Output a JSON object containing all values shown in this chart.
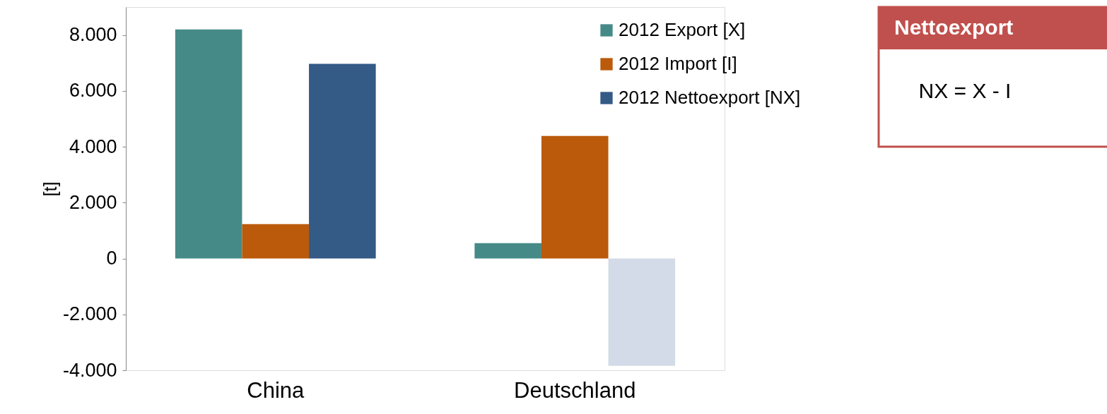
{
  "chart_data": {
    "type": "bar",
    "ylabel": "[t]",
    "categories": [
      "China",
      "Deutschland"
    ],
    "series": [
      {
        "name": "2012 Export [X]",
        "color": "#468a87",
        "values": [
          8200,
          550
        ]
      },
      {
        "name": "2012 Import [I]",
        "color": "#bb5a0b",
        "values": [
          1230,
          4390
        ]
      },
      {
        "name": "2012 Nettoexport [NX]",
        "color": "#345a86",
        "colors": [
          "#345a86",
          "#d3dbe8"
        ],
        "values": [
          6970,
          -3840
        ]
      }
    ],
    "ylim": [
      -4000,
      9000
    ],
    "yticks": [
      {
        "value": -4000,
        "label": "-4.000"
      },
      {
        "value": -2000,
        "label": "-2.000"
      },
      0,
      {
        "value": 2000,
        "label": "2.000"
      },
      {
        "value": 4000,
        "label": "4.000"
      },
      {
        "value": 6000,
        "label": "6.000"
      },
      {
        "value": 8000,
        "label": "8.000"
      }
    ],
    "legend": "top right",
    "grid": false,
    "annotations": [
      "Nettoexport",
      "NX = X - I"
    ]
  }
}
